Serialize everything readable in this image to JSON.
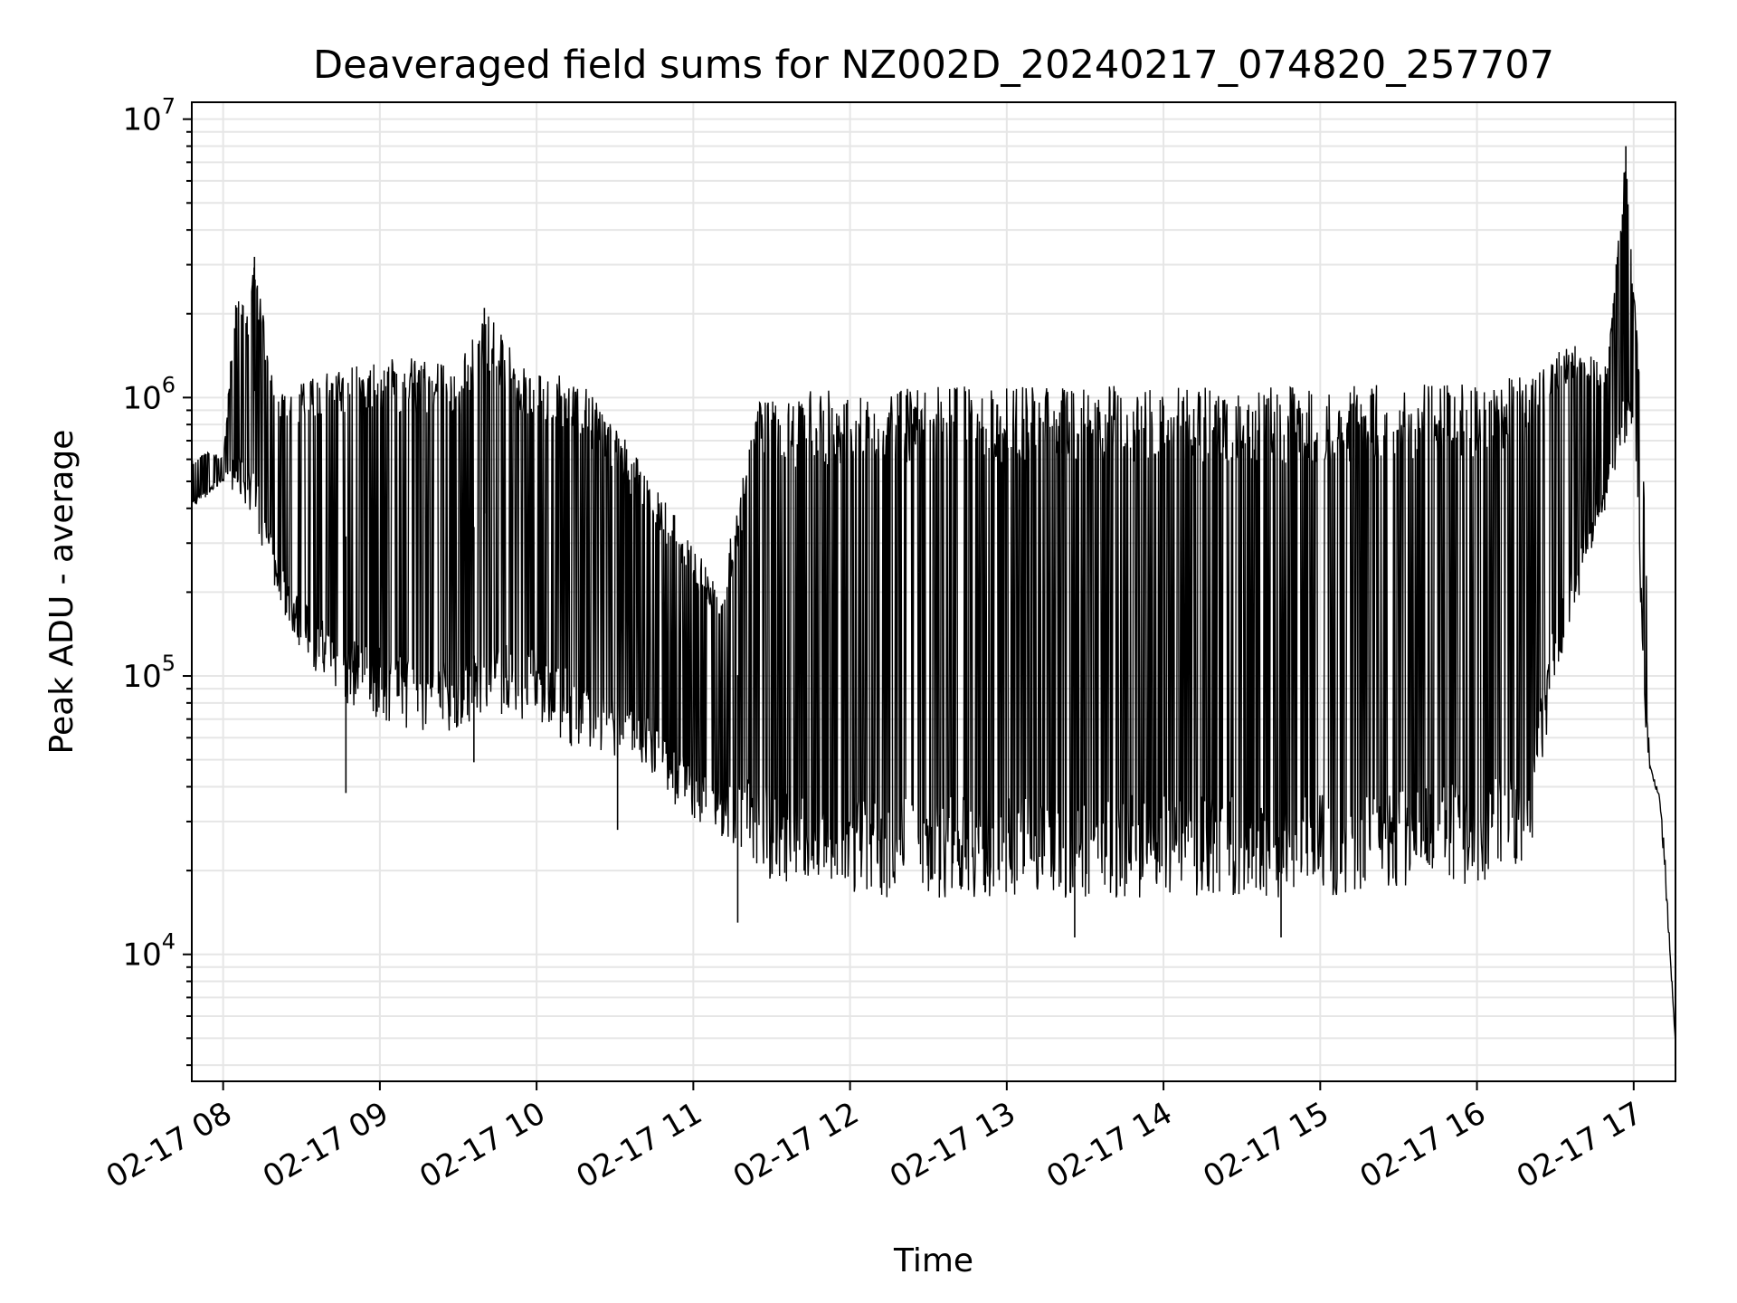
{
  "chart_data": {
    "type": "line",
    "title": "Deaveraged field sums for NZ002D_20240217_074820_257707",
    "xlabel": "Time",
    "ylabel": "Peak ADU - average",
    "yscale": "log",
    "ylim": [
      3500,
      11500000
    ],
    "xlim": [
      "2024-02-17 07:48",
      "2024-02-17 17:16"
    ],
    "grid": "major and minor, light gray",
    "line_color": "#000000",
    "x_ticks": [
      {
        "value": "2024-02-17 08:00",
        "label": "02-17 08"
      },
      {
        "value": "2024-02-17 09:00",
        "label": "02-17 09"
      },
      {
        "value": "2024-02-17 10:00",
        "label": "02-17 10"
      },
      {
        "value": "2024-02-17 11:00",
        "label": "02-17 11"
      },
      {
        "value": "2024-02-17 12:00",
        "label": "02-17 12"
      },
      {
        "value": "2024-02-17 13:00",
        "label": "02-17 13"
      },
      {
        "value": "2024-02-17 14:00",
        "label": "02-17 14"
      },
      {
        "value": "2024-02-17 15:00",
        "label": "02-17 15"
      },
      {
        "value": "2024-02-17 16:00",
        "label": "02-17 16"
      },
      {
        "value": "2024-02-17 17:00",
        "label": "02-17 17"
      }
    ],
    "y_ticks": [
      {
        "value": 10000,
        "base": "10",
        "exp": "4"
      },
      {
        "value": 100000,
        "base": "10",
        "exp": "5"
      },
      {
        "value": 1000000,
        "base": "10",
        "exp": "6"
      },
      {
        "value": 10000000,
        "base": "10",
        "exp": "7"
      }
    ],
    "series": [
      {
        "envelope_upper": [
          [
            "2024-02-17 07:48",
            600000
          ],
          [
            "2024-02-17 07:55",
            650000
          ],
          [
            "2024-02-17 08:00",
            600000
          ],
          [
            "2024-02-17 08:05",
            2500000
          ],
          [
            "2024-02-17 08:10",
            2000000
          ],
          [
            "2024-02-17 08:12",
            3200000
          ],
          [
            "2024-02-17 08:20",
            1000000
          ],
          [
            "2024-02-17 08:35",
            1200000
          ],
          [
            "2024-02-17 08:50",
            1300000
          ],
          [
            "2024-02-17 09:10",
            1400000
          ],
          [
            "2024-02-17 09:30",
            1300000
          ],
          [
            "2024-02-17 09:40",
            2100000
          ],
          [
            "2024-02-17 09:55",
            1300000
          ],
          [
            "2024-02-17 10:15",
            1200000
          ],
          [
            "2024-02-17 10:30",
            800000
          ],
          [
            "2024-02-17 10:45",
            500000
          ],
          [
            "2024-02-17 11:00",
            300000
          ],
          [
            "2024-02-17 11:10",
            200000
          ],
          [
            "2024-02-17 11:25",
            1000000
          ],
          [
            "2024-02-17 12:00",
            1100000
          ],
          [
            "2024-02-17 13:00",
            1100000
          ],
          [
            "2024-02-17 14:00",
            1100000
          ],
          [
            "2024-02-17 15:00",
            1100000
          ],
          [
            "2024-02-17 16:00",
            1150000
          ],
          [
            "2024-02-17 16:20",
            1200000
          ],
          [
            "2024-02-17 16:35",
            1600000
          ],
          [
            "2024-02-17 16:50",
            1300000
          ],
          [
            "2024-02-17 16:57",
            8000000
          ],
          [
            "2024-02-17 17:00",
            2500000
          ],
          [
            "2024-02-17 17:03",
            1000000
          ],
          [
            "2024-02-17 17:07",
            50000
          ],
          [
            "2024-02-17 17:12",
            40000
          ],
          [
            "2024-02-17 17:16",
            4800
          ]
        ],
        "envelope_lower": [
          [
            "2024-02-17 07:48",
            400000
          ],
          [
            "2024-02-17 07:55",
            450000
          ],
          [
            "2024-02-17 08:00",
            500000
          ],
          [
            "2024-02-17 08:10",
            400000
          ],
          [
            "2024-02-17 08:20",
            200000
          ],
          [
            "2024-02-17 08:30",
            120000
          ],
          [
            "2024-02-17 08:45",
            80000
          ],
          [
            "2024-02-17 09:00",
            70000
          ],
          [
            "2024-02-17 09:20",
            60000
          ],
          [
            "2024-02-17 09:40",
            70000
          ],
          [
            "2024-02-17 10:00",
            70000
          ],
          [
            "2024-02-17 10:20",
            50000
          ],
          [
            "2024-02-17 10:40",
            45000
          ],
          [
            "2024-02-17 11:00",
            30000
          ],
          [
            "2024-02-17 11:15",
            25000
          ],
          [
            "2024-02-17 11:30",
            18000
          ],
          [
            "2024-02-17 12:00",
            16000
          ],
          [
            "2024-02-17 13:00",
            16000
          ],
          [
            "2024-02-17 14:00",
            16000
          ],
          [
            "2024-02-17 15:00",
            16000
          ],
          [
            "2024-02-17 16:00",
            18000
          ],
          [
            "2024-02-17 16:20",
            22000
          ],
          [
            "2024-02-17 16:30",
            100000
          ],
          [
            "2024-02-17 16:45",
            300000
          ],
          [
            "2024-02-17 16:55",
            600000
          ],
          [
            "2024-02-17 17:00",
            800000
          ],
          [
            "2024-02-17 17:05",
            50000
          ],
          [
            "2024-02-17 17:10",
            35000
          ],
          [
            "2024-02-17 17:16",
            4800
          ]
        ],
        "visible_spikes": [
          [
            "2024-02-17 08:12",
            3200000
          ],
          [
            "2024-02-17 08:47",
            38000
          ],
          [
            "2024-02-17 09:40",
            2100000
          ],
          [
            "2024-02-17 09:36",
            49000
          ],
          [
            "2024-02-17 10:31",
            28000
          ],
          [
            "2024-02-17 11:17",
            13000
          ],
          [
            "2024-02-17 13:26",
            11500
          ],
          [
            "2024-02-17 14:45",
            11500
          ],
          [
            "2024-02-17 16:57",
            8000000
          ]
        ]
      }
    ]
  }
}
